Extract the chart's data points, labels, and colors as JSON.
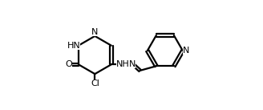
{
  "bg_color": "#ffffff",
  "line_color": "#000000",
  "line_width": 1.6,
  "font_size": 8.0,
  "figsize": [
    3.28,
    1.37
  ],
  "dpi": 100,
  "xlim": [
    0.0,
    1.0
  ],
  "ylim": [
    0.05,
    0.95
  ]
}
